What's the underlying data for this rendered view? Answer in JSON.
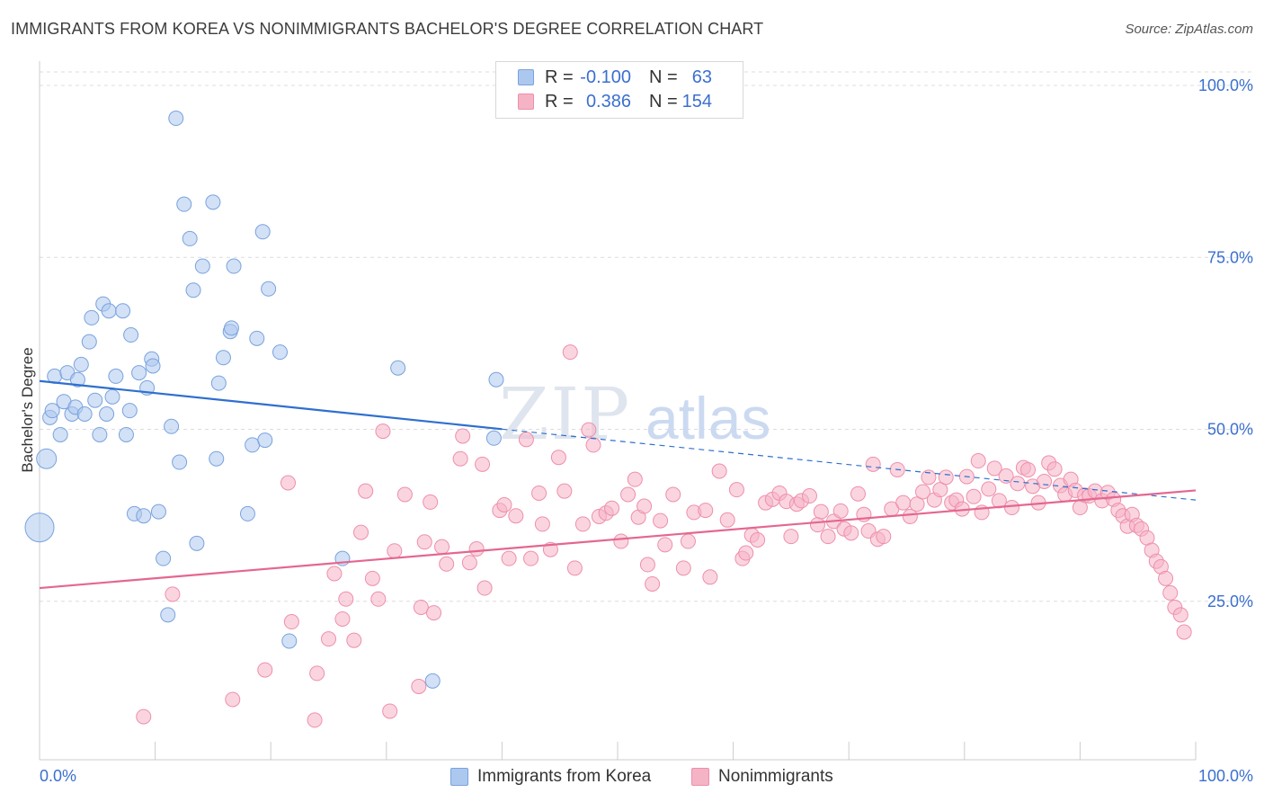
{
  "title": "IMMIGRANTS FROM KOREA VS NONIMMIGRANTS BACHELOR'S DEGREE CORRELATION CHART",
  "source": "Source: ZipAtlas.com",
  "watermark": {
    "zip": "ZIP",
    "atlas": "atlas"
  },
  "colors": {
    "korea_fill": "#adc8ef",
    "korea_stroke": "#7aa2dd",
    "korea_line": "#2f6fcf",
    "nonimm_fill": "#f5b3c6",
    "nonimm_stroke": "#ee8faa",
    "nonimm_line": "#e4678f",
    "tick_label": "#3b6fcf",
    "grid": "#dcdcdc"
  },
  "stats": {
    "korea": {
      "r_label": "R =",
      "r_value": "-0.100",
      "n_label": "N =",
      "n_value": "63"
    },
    "nonimm": {
      "r_label": "R =",
      "r_value": "0.386",
      "n_label": "N =",
      "n_value": "154"
    }
  },
  "chart_data": {
    "type": "scatter",
    "title": "IMMIGRANTS FROM KOREA VS NONIMMIGRANTS BACHELOR'S DEGREE CORRELATION CHART",
    "ylabel": "Bachelor's Degree",
    "xlabel": "",
    "xlim": [
      0,
      100
    ],
    "ylim": [
      0,
      100
    ],
    "x_tick_labels": [
      "0.0%",
      "100.0%"
    ],
    "y_ticks": [
      {
        "value": 100,
        "label": "100.0%"
      },
      {
        "value": 75,
        "label": "75.0%"
      },
      {
        "value": 50,
        "label": "50.0%"
      },
      {
        "value": 25,
        "label": "25.0%"
      }
    ],
    "grid": "horizontal dashed",
    "legend": [
      "Immigrants from Korea",
      "Nonimmigrants"
    ],
    "series": [
      {
        "name": "Immigrants from Korea",
        "trend": {
          "x": [
            0,
            40
          ],
          "y": [
            54.8,
            47.8
          ],
          "dashed_to_x": 100,
          "dashed_to_y": 37.5
        },
        "points": [
          [
            0,
            33.5,
            3
          ],
          [
            0.6,
            43.5,
            2
          ],
          [
            0.9,
            49.5,
            1
          ],
          [
            1.1,
            50.5,
            1
          ],
          [
            1.3,
            55.5,
            1
          ],
          [
            1.8,
            47,
            1
          ],
          [
            2.1,
            51.8,
            1
          ],
          [
            2.4,
            56,
            1
          ],
          [
            2.8,
            50,
            1
          ],
          [
            3.1,
            51,
            1
          ],
          [
            3.3,
            55,
            1
          ],
          [
            3.6,
            57.2,
            1
          ],
          [
            3.9,
            50,
            1
          ],
          [
            4.3,
            60.5,
            1
          ],
          [
            4.5,
            64,
            1
          ],
          [
            4.8,
            52,
            1
          ],
          [
            5.2,
            47,
            1
          ],
          [
            5.5,
            66,
            1
          ],
          [
            5.8,
            50,
            1
          ],
          [
            6.0,
            65,
            1
          ],
          [
            6.3,
            52.5,
            1
          ],
          [
            6.6,
            55.5,
            1
          ],
          [
            7.2,
            65,
            1
          ],
          [
            7.5,
            47,
            1
          ],
          [
            7.8,
            50.5,
            1
          ],
          [
            7.9,
            61.5,
            1
          ],
          [
            8.2,
            35.5,
            1
          ],
          [
            8.6,
            56,
            1
          ],
          [
            9.0,
            35.2,
            1
          ],
          [
            9.3,
            53.8,
            1
          ],
          [
            9.7,
            58,
            1
          ],
          [
            9.8,
            57,
            1
          ],
          [
            10.3,
            35.8,
            1
          ],
          [
            10.7,
            29,
            1
          ],
          [
            11.1,
            20.8,
            1
          ],
          [
            11.4,
            48.2,
            1
          ],
          [
            11.8,
            93,
            1
          ],
          [
            12.1,
            43,
            1
          ],
          [
            12.5,
            80.5,
            1
          ],
          [
            13.0,
            75.5,
            1
          ],
          [
            13.3,
            68,
            1
          ],
          [
            13.6,
            31.2,
            1
          ],
          [
            14.1,
            71.5,
            1
          ],
          [
            15.0,
            80.8,
            1
          ],
          [
            15.3,
            43.5,
            1
          ],
          [
            15.5,
            54.5,
            1
          ],
          [
            15.9,
            58.2,
            1
          ],
          [
            16.5,
            62,
            1
          ],
          [
            16.6,
            62.5,
            1
          ],
          [
            16.8,
            71.5,
            1
          ],
          [
            18.0,
            35.5,
            1
          ],
          [
            18.4,
            45.5,
            1
          ],
          [
            18.8,
            61,
            1
          ],
          [
            19.3,
            76.5,
            1
          ],
          [
            19.5,
            46.2,
            1
          ],
          [
            19.8,
            68.2,
            1
          ],
          [
            20.8,
            59,
            1
          ],
          [
            21.6,
            17,
            1
          ],
          [
            26.2,
            29,
            1
          ],
          [
            31.0,
            56.7,
            1
          ],
          [
            34.0,
            11.2,
            1
          ],
          [
            39.3,
            46.5,
            1
          ],
          [
            39.5,
            55,
            1
          ]
        ]
      },
      {
        "name": "Nonimmigrants",
        "trend": {
          "x": [
            0,
            100
          ],
          "y": [
            24.7,
            38.9
          ]
        },
        "points": [
          [
            9.0,
            6,
            1
          ],
          [
            11.5,
            23.8,
            1
          ],
          [
            16.7,
            8.5,
            1
          ],
          [
            19.5,
            12.8,
            1
          ],
          [
            21.5,
            40,
            1
          ],
          [
            21.8,
            19.8,
            1
          ],
          [
            24.0,
            12.3,
            1
          ],
          [
            23.8,
            5.5,
            1
          ],
          [
            25.0,
            17.3,
            1
          ],
          [
            25.5,
            26.8,
            1
          ],
          [
            26.2,
            20.2,
            1
          ],
          [
            26.5,
            23.1,
            1
          ],
          [
            27.2,
            17.1,
            1
          ],
          [
            27.8,
            32.8,
            1
          ],
          [
            28.2,
            38.8,
            1
          ],
          [
            28.8,
            26.1,
            1
          ],
          [
            29.3,
            23.1,
            1
          ],
          [
            29.7,
            47.5,
            1
          ],
          [
            30.3,
            6.8,
            1
          ],
          [
            30.7,
            30.1,
            1
          ],
          [
            31.6,
            38.3,
            1
          ],
          [
            32.8,
            10.4,
            1
          ],
          [
            33.0,
            21.9,
            1
          ],
          [
            33.3,
            31.4,
            1
          ],
          [
            33.8,
            37.2,
            1
          ],
          [
            34.1,
            21.1,
            1
          ],
          [
            34.8,
            30.7,
            1
          ],
          [
            35.2,
            28.2,
            1
          ],
          [
            36.4,
            43.5,
            1
          ],
          [
            36.6,
            46.8,
            1
          ],
          [
            37.2,
            28.4,
            1
          ],
          [
            37.8,
            30.4,
            1
          ],
          [
            38.3,
            42.7,
            1
          ],
          [
            38.5,
            24.7,
            1
          ],
          [
            39.8,
            36,
            1
          ],
          [
            40.2,
            36.8,
            1
          ],
          [
            40.6,
            29,
            1
          ],
          [
            41.2,
            35.2,
            1
          ],
          [
            42.1,
            46.3,
            1
          ],
          [
            42.5,
            29,
            1
          ],
          [
            43.2,
            38.5,
            1
          ],
          [
            43.5,
            34,
            1
          ],
          [
            44.2,
            30.3,
            1
          ],
          [
            44.9,
            43.7,
            1
          ],
          [
            45.4,
            38.8,
            1
          ],
          [
            45.9,
            59,
            1
          ],
          [
            46.3,
            27.6,
            1
          ],
          [
            47.0,
            34,
            1
          ],
          [
            47.5,
            47.7,
            1
          ],
          [
            47.9,
            45.5,
            1
          ],
          [
            48.4,
            35.1,
            1
          ],
          [
            49.0,
            35.6,
            1
          ],
          [
            49.5,
            36.3,
            1
          ],
          [
            50.3,
            31.5,
            1
          ],
          [
            50.9,
            38.3,
            1
          ],
          [
            51.5,
            40.5,
            1
          ],
          [
            51.8,
            35,
            1
          ],
          [
            52.3,
            36.6,
            1
          ],
          [
            52.6,
            28.1,
            1
          ],
          [
            53.0,
            25.3,
            1
          ],
          [
            53.7,
            34.5,
            1
          ],
          [
            54.1,
            31,
            1
          ],
          [
            54.8,
            38.3,
            1
          ],
          [
            55.7,
            27.6,
            1
          ],
          [
            56.1,
            31.5,
            1
          ],
          [
            56.6,
            35.7,
            1
          ],
          [
            57.6,
            36,
            1
          ],
          [
            58.0,
            26.3,
            1
          ],
          [
            58.8,
            41.7,
            1
          ],
          [
            59.5,
            34.6,
            1
          ],
          [
            60.3,
            39,
            1
          ],
          [
            60.8,
            29,
            1
          ],
          [
            61.1,
            29.8,
            1
          ],
          [
            61.6,
            32.4,
            1
          ],
          [
            62.1,
            31.7,
            1
          ],
          [
            62.8,
            37.1,
            1
          ],
          [
            63.4,
            37.6,
            1
          ],
          [
            64.0,
            38.5,
            1
          ],
          [
            64.6,
            37.3,
            1
          ],
          [
            65.0,
            32.2,
            1
          ],
          [
            65.5,
            36.9,
            1
          ],
          [
            65.9,
            37.4,
            1
          ],
          [
            66.6,
            38.1,
            1
          ],
          [
            67.3,
            33.9,
            1
          ],
          [
            67.6,
            35.8,
            1
          ],
          [
            68.2,
            32.2,
            1
          ],
          [
            68.7,
            34.4,
            1
          ],
          [
            69.3,
            35.9,
            1
          ],
          [
            69.6,
            33.3,
            1
          ],
          [
            70.2,
            32.7,
            1
          ],
          [
            70.8,
            38.4,
            1
          ],
          [
            71.3,
            35.4,
            1
          ],
          [
            71.7,
            33,
            1
          ],
          [
            72.1,
            42.7,
            1
          ],
          [
            72.5,
            31.8,
            1
          ],
          [
            73.0,
            32.2,
            1
          ],
          [
            73.7,
            36.2,
            1
          ],
          [
            74.2,
            41.9,
            1
          ],
          [
            74.7,
            37.1,
            1
          ],
          [
            75.3,
            35.1,
            1
          ],
          [
            75.9,
            36.9,
            1
          ],
          [
            76.4,
            38.7,
            1
          ],
          [
            76.9,
            40.8,
            1
          ],
          [
            77.4,
            37.5,
            1
          ],
          [
            77.9,
            39,
            1
          ],
          [
            78.4,
            40.8,
            1
          ],
          [
            78.9,
            37.1,
            1
          ],
          [
            79.3,
            37.5,
            1
          ],
          [
            79.8,
            36.2,
            1
          ],
          [
            80.2,
            40.9,
            1
          ],
          [
            80.8,
            38,
            1
          ],
          [
            81.2,
            43.2,
            1
          ],
          [
            81.5,
            35.7,
            1
          ],
          [
            82.1,
            39.1,
            1
          ],
          [
            82.6,
            42.1,
            1
          ],
          [
            83.0,
            37.4,
            1
          ],
          [
            83.6,
            41,
            1
          ],
          [
            84.1,
            36.4,
            1
          ],
          [
            84.6,
            39.9,
            1
          ],
          [
            85.1,
            42.2,
            1
          ],
          [
            85.5,
            41.9,
            1
          ],
          [
            85.9,
            39.5,
            1
          ],
          [
            86.4,
            37.1,
            1
          ],
          [
            86.9,
            40.2,
            1
          ],
          [
            87.3,
            42.9,
            1
          ],
          [
            87.8,
            42,
            1
          ],
          [
            88.3,
            39.6,
            1
          ],
          [
            88.7,
            38.3,
            1
          ],
          [
            89.2,
            40.5,
            1
          ],
          [
            89.6,
            38.9,
            1
          ],
          [
            90.0,
            36.4,
            1
          ],
          [
            90.4,
            38.2,
            1
          ],
          [
            90.8,
            38.1,
            1
          ],
          [
            91.3,
            38.8,
            1
          ],
          [
            91.9,
            37.4,
            1
          ],
          [
            92.4,
            38.6,
            1
          ],
          [
            92.9,
            37.6,
            1
          ],
          [
            93.3,
            36,
            1
          ],
          [
            93.7,
            35.2,
            1
          ],
          [
            94.1,
            33.7,
            1
          ],
          [
            94.5,
            35.4,
            1
          ],
          [
            94.9,
            33.8,
            1
          ],
          [
            95.3,
            33.3,
            1
          ],
          [
            95.8,
            32,
            1
          ],
          [
            96.2,
            30.2,
            1
          ],
          [
            96.6,
            28.6,
            1
          ],
          [
            97.0,
            27.8,
            1
          ],
          [
            97.4,
            26.1,
            1
          ],
          [
            97.8,
            24,
            1
          ],
          [
            98.2,
            21.9,
            1
          ],
          [
            98.7,
            20.8,
            1
          ],
          [
            99.0,
            18.3,
            1
          ]
        ]
      }
    ]
  },
  "legend_items": {
    "korea": "Immigrants from Korea",
    "nonimm": "Nonimmigrants"
  }
}
